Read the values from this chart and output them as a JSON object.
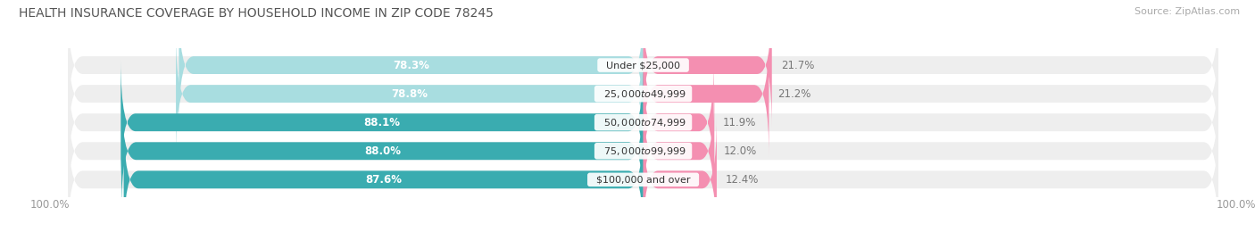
{
  "title": "HEALTH INSURANCE COVERAGE BY HOUSEHOLD INCOME IN ZIP CODE 78245",
  "source": "Source: ZipAtlas.com",
  "categories": [
    "Under $25,000",
    "$25,000 to $49,999",
    "$50,000 to $74,999",
    "$75,000 to $99,999",
    "$100,000 and over"
  ],
  "with_coverage": [
    78.3,
    78.8,
    88.1,
    88.0,
    87.6
  ],
  "without_coverage": [
    21.7,
    21.2,
    11.9,
    12.0,
    12.4
  ],
  "color_with_light": "#a8dde0",
  "color_with_dark": "#3aacb0",
  "color_without": "#f48fb1",
  "color_bg_bar": "#eeeeee",
  "title_fontsize": 10,
  "label_fontsize": 8.5,
  "tick_fontsize": 8.5,
  "source_fontsize": 8,
  "bar_height": 0.62,
  "background_color": "#ffffff"
}
